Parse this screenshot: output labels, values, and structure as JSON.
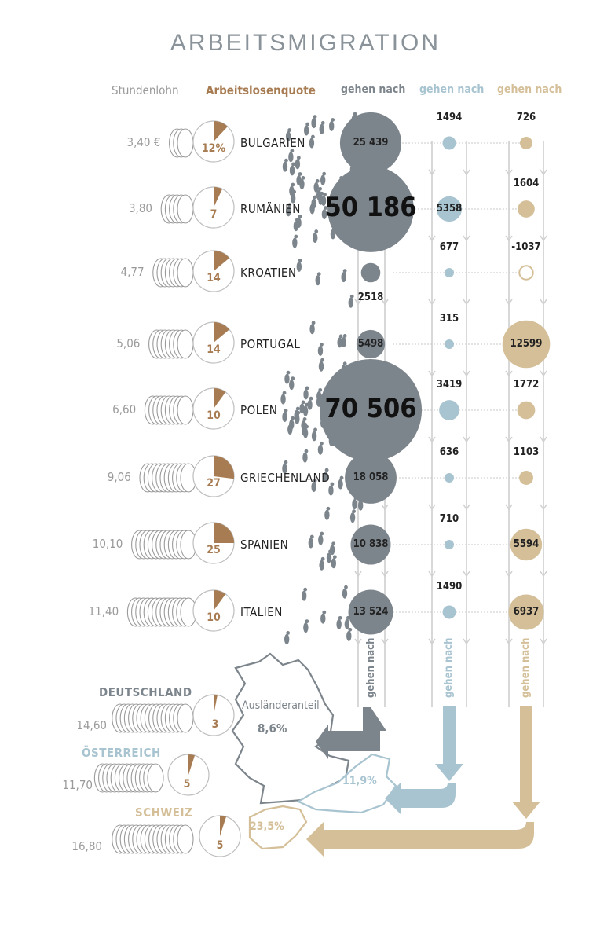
{
  "title": "ARBEITSMIGRATION",
  "headers": {
    "stundenlohn": "Stundenlohn",
    "arbeitslosenquote": "Arbeitslosenquote",
    "de": "gehen nach",
    "at": "gehen nach",
    "ch": "gehen nach"
  },
  "colors": {
    "de": "#7d858c",
    "at": "#a8c4d0",
    "ch": "#d4bf98",
    "rate": "#a87c52",
    "grey_text": "#9a9a9a"
  },
  "countries": [
    {
      "name": "BULGARIEN",
      "wage": "3,40 €",
      "rate_label": "12%",
      "rate": 12,
      "de": "25 439",
      "de_value": 25439,
      "at": "1494",
      "at_value": 1494,
      "ch": "726",
      "ch_value": 726
    },
    {
      "name": "RUMÄNIEN",
      "wage": "3,80",
      "rate_label": "7",
      "rate": 7,
      "de": "50 186",
      "de_value": 50186,
      "at": "5358",
      "at_value": 5358,
      "ch": "1604",
      "ch_value": 1604
    },
    {
      "name": "KROATIEN",
      "wage": "4,77",
      "rate_label": "14",
      "rate": 14,
      "de": "2518",
      "de_value": 2518,
      "at": "677",
      "at_value": 677,
      "ch": "-1037",
      "ch_value": -1037
    },
    {
      "name": "PORTUGAL",
      "wage": "5,06",
      "rate_label": "14",
      "rate": 14,
      "de": "5498",
      "de_value": 5498,
      "at": "315",
      "at_value": 315,
      "ch": "12599",
      "ch_value": 12599
    },
    {
      "name": "POLEN",
      "wage": "6,60",
      "rate_label": "10",
      "rate": 10,
      "de": "70 506",
      "de_value": 70506,
      "at": "3419",
      "at_value": 3419,
      "ch": "1772",
      "ch_value": 1772
    },
    {
      "name": "GRIECHENLAND",
      "wage": "9,06",
      "rate_label": "27",
      "rate": 27,
      "de": "18 058",
      "de_value": 18058,
      "at": "636",
      "at_value": 636,
      "ch": "1103",
      "ch_value": 1103
    },
    {
      "name": "SPANIEN",
      "wage": "10,10",
      "rate_label": "25",
      "rate": 25,
      "de": "10 838",
      "de_value": 10838,
      "at": "710",
      "at_value": 710,
      "ch": "5594",
      "ch_value": 5594
    },
    {
      "name": "ITALIEN",
      "wage": "11,40",
      "rate_label": "10",
      "rate": 10,
      "de": "13 524",
      "de_value": 13524,
      "at": "1490",
      "at_value": 1490,
      "ch": "6937",
      "ch_value": 6937
    }
  ],
  "targets": [
    {
      "name": "DEUTSCHLAND",
      "wage": "14,60",
      "rate_label": "3",
      "rate": 3
    },
    {
      "name": "ÖSTERREICH",
      "wage": "11,70",
      "rate_label": "5",
      "rate": 5
    },
    {
      "name": "SCHWEIZ",
      "wage": "16,80",
      "rate_label": "5",
      "rate": 5
    }
  ],
  "foreign_share": {
    "label": "Ausländeranteil",
    "de": "8,6%",
    "at": "11,9%",
    "ch": "23,5%"
  },
  "vertical_labels": {
    "de": "gehen nach",
    "at": "gehen nach",
    "ch": "gehen nach"
  }
}
